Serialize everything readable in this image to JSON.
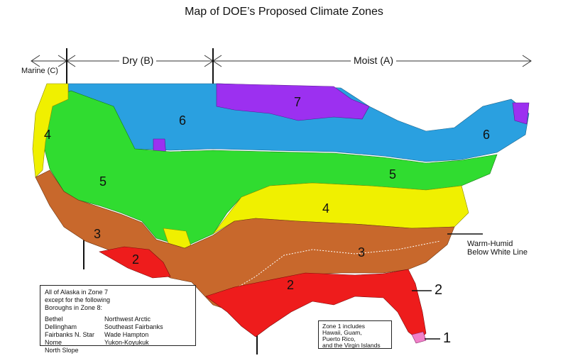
{
  "title": "Map of DOE’s Proposed Climate Zones",
  "bands": {
    "marine": "Marine (C)",
    "dry": "Dry (B)",
    "moist": "Moist (A)"
  },
  "zone_labels": {
    "z7": "7",
    "z6_west": "6",
    "z6_east": "6",
    "z5_west": "5",
    "z5_east": "5",
    "z4_west": "4",
    "z4_east": "4",
    "z3_west": "3",
    "z3_east": "3",
    "z2_west": "2",
    "z2_east": "2"
  },
  "warm_humid": {
    "line1": "Warm-Humid",
    "line2": "Below White Line"
  },
  "callouts": {
    "two": "2",
    "one": "1"
  },
  "alaska_note": {
    "heading_line1": "All of Alaska in Zone 7",
    "heading_line2": "except for the following",
    "heading_line3": "Boroughs in Zone 8:",
    "col1": [
      "Bethel",
      "Dellingham",
      "Fairbanks N. Star",
      "Nome",
      "North Slope"
    ],
    "col2": [
      "Northwest Arctic",
      "Southeast Fairbanks",
      "Wade Hampton",
      "Yukon-Koyukuk"
    ]
  },
  "zone1_note": {
    "line1": "Zone 1 includes",
    "line2": "Hawaii, Guam,",
    "line3": "Puerto Rico,",
    "line4": "and the Virgin Islands"
  },
  "colors": {
    "zone1": "#f080c8",
    "zone2": "#ee1c1c",
    "zone3": "#c8682c",
    "zone4": "#f0f000",
    "zone5": "#30dc30",
    "zone6": "#2aa0e0",
    "zone7": "#9c30f0"
  }
}
